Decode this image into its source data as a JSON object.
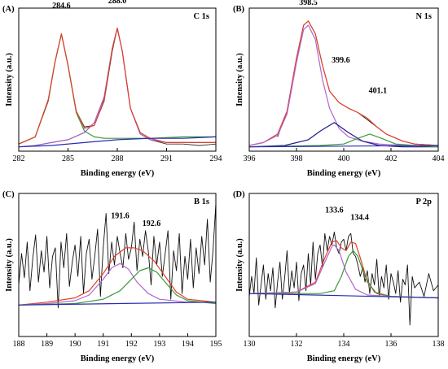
{
  "chart_data": [
    {
      "type": "line",
      "panel": "(A)",
      "title": "C 1s",
      "xlabel": "Binding energy (eV)",
      "ylabel": "Intensity (a.u.)",
      "xlim": [
        282,
        294
      ],
      "xticks": [
        282,
        285,
        288,
        291,
        294
      ],
      "ylim": [
        0,
        1
      ],
      "grid": false,
      "annotations": [
        {
          "text": "284.6",
          "x": 284.6,
          "y": 0.965
        },
        {
          "text": "288.0",
          "x": 288.0,
          "y": 1.0
        }
      ],
      "series": [
        {
          "color": "#333333",
          "x": [
            282,
            283,
            283.8,
            284.2,
            284.6,
            285.0,
            285.5,
            286.0,
            286.6,
            287.2,
            287.7,
            288.0,
            288.3,
            288.8,
            289.4,
            290,
            291,
            292,
            293,
            294
          ],
          "y": [
            0.05,
            0.1,
            0.35,
            0.62,
            0.82,
            0.6,
            0.28,
            0.17,
            0.18,
            0.35,
            0.7,
            0.86,
            0.7,
            0.3,
            0.12,
            0.08,
            0.05,
            0.05,
            0.04,
            0.05
          ]
        },
        {
          "color": "#3a9a3a",
          "x": [
            282,
            283,
            283.8,
            284.2,
            284.6,
            285.0,
            285.5,
            286.0,
            286.6,
            287.2,
            288,
            289,
            290,
            292,
            294
          ],
          "y": [
            0.05,
            0.1,
            0.36,
            0.62,
            0.82,
            0.6,
            0.27,
            0.14,
            0.1,
            0.09,
            0.09,
            0.09,
            0.09,
            0.1,
            0.1
          ]
        },
        {
          "color": "#9a5bc4",
          "x": [
            282,
            283,
            284,
            285,
            286,
            286.6,
            287.2,
            287.7,
            288.0,
            288.3,
            288.8,
            289.4,
            290,
            291,
            292,
            294
          ],
          "y": [
            0.03,
            0.04,
            0.06,
            0.08,
            0.13,
            0.2,
            0.38,
            0.72,
            0.86,
            0.7,
            0.3,
            0.12,
            0.08,
            0.06,
            0.06,
            0.06
          ]
        },
        {
          "color": "#e0402a",
          "x": [
            282,
            283,
            283.8,
            284.2,
            284.6,
            285.0,
            285.5,
            286.0,
            286.6,
            287.2,
            287.7,
            288.0,
            288.3,
            288.8,
            289.4,
            290,
            291,
            292,
            294
          ],
          "y": [
            0.05,
            0.1,
            0.36,
            0.62,
            0.82,
            0.6,
            0.28,
            0.16,
            0.18,
            0.36,
            0.72,
            0.86,
            0.7,
            0.3,
            0.13,
            0.09,
            0.06,
            0.06,
            0.06
          ]
        },
        {
          "color": "#2b2bb0",
          "x": [
            282,
            284,
            286,
            288,
            290,
            292,
            294
          ],
          "y": [
            0.03,
            0.04,
            0.06,
            0.08,
            0.09,
            0.09,
            0.1
          ]
        }
      ]
    },
    {
      "type": "line",
      "panel": "(B)",
      "title": "N 1s",
      "xlabel": "Binding energy (eV)",
      "ylabel": "Intensity (a.u.)",
      "xlim": [
        396,
        404
      ],
      "xticks": [
        396,
        398,
        400,
        402,
        404
      ],
      "ylim": [
        0,
        1
      ],
      "grid": false,
      "annotations": [
        {
          "text": "398.5",
          "x": 398.5,
          "y": 0.99
        },
        {
          "text": "399.6",
          "x": 399.6,
          "y": 0.55
        },
        {
          "text": "401.1",
          "x": 401.1,
          "y": 0.36
        }
      ],
      "series": [
        {
          "color": "#111111",
          "x": [
            397.2,
            397.6,
            398.0,
            398.3,
            398.5,
            398.8,
            399.1,
            399.4,
            399.8,
            400.2,
            400.6,
            401.0,
            401.4,
            401.8,
            402.5,
            403,
            404
          ],
          "y": [
            0.1,
            0.28,
            0.65,
            0.88,
            0.91,
            0.82,
            0.6,
            0.42,
            0.34,
            0.3,
            0.27,
            0.22,
            0.17,
            0.12,
            0.07,
            0.05,
            0.04
          ]
        },
        {
          "color": "#e0402a",
          "x": [
            396,
            396.6,
            397.2,
            397.6,
            398.0,
            398.3,
            398.5,
            398.8,
            399.1,
            399.4,
            399.8,
            400.2,
            400.6,
            401.0,
            401.4,
            401.8,
            402.5,
            403,
            404
          ],
          "y": [
            0.04,
            0.06,
            0.12,
            0.28,
            0.65,
            0.88,
            0.91,
            0.82,
            0.6,
            0.42,
            0.34,
            0.3,
            0.27,
            0.23,
            0.17,
            0.12,
            0.07,
            0.05,
            0.04
          ]
        },
        {
          "color": "#b066d0",
          "x": [
            396,
            396.6,
            397.2,
            397.6,
            398.0,
            398.3,
            398.5,
            398.8,
            399.1,
            399.4,
            399.8,
            400.2,
            400.8,
            401.5,
            402.5,
            404
          ],
          "y": [
            0.04,
            0.06,
            0.11,
            0.26,
            0.62,
            0.85,
            0.88,
            0.78,
            0.5,
            0.3,
            0.16,
            0.1,
            0.07,
            0.05,
            0.04,
            0.04
          ]
        },
        {
          "color": "#1a1a8a",
          "x": [
            396,
            397.5,
            398.5,
            399.0,
            399.6,
            400.2,
            400.8,
            401.5,
            402.5,
            404
          ],
          "y": [
            0.03,
            0.04,
            0.08,
            0.14,
            0.2,
            0.13,
            0.07,
            0.04,
            0.03,
            0.03
          ]
        },
        {
          "color": "#3a9a3a",
          "x": [
            396,
            399,
            400,
            400.6,
            401.1,
            401.6,
            402.2,
            403,
            404
          ],
          "y": [
            0.03,
            0.04,
            0.05,
            0.09,
            0.12,
            0.09,
            0.05,
            0.04,
            0.03
          ]
        },
        {
          "color": "#2b2bb0",
          "x": [
            396,
            400,
            404
          ],
          "y": [
            0.03,
            0.035,
            0.04
          ]
        }
      ]
    },
    {
      "type": "line",
      "panel": "(C)",
      "title": "B 1s",
      "xlabel": "Binding energy (eV)",
      "ylabel": "Intensity (a.u.)",
      "xlim": [
        188,
        195
      ],
      "xticks": [
        188,
        189,
        190,
        191,
        192,
        193,
        194,
        195
      ],
      "ylim": [
        0,
        1
      ],
      "grid": false,
      "annotations": [
        {
          "text": "191.6",
          "x": 191.6,
          "y": 0.78
        },
        {
          "text": "192.6",
          "x": 192.6,
          "y": 0.74
        }
      ],
      "series": [
        {
          "color": "#111111",
          "x": [
            188,
            188.1,
            188.2,
            188.3,
            188.4,
            188.5,
            188.6,
            188.7,
            188.8,
            188.9,
            189.0,
            189.1,
            189.2,
            189.3,
            189.4,
            189.5,
            189.6,
            189.7,
            189.8,
            189.9,
            190.0,
            190.1,
            190.2,
            190.3,
            190.4,
            190.5,
            190.6,
            190.7,
            190.8,
            190.9,
            191.0,
            191.1,
            191.2,
            191.3,
            191.4,
            191.5,
            191.6,
            191.7,
            191.8,
            191.9,
            192.0,
            192.1,
            192.2,
            192.3,
            192.4,
            192.5,
            192.6,
            192.7,
            192.8,
            192.9,
            193.0,
            193.1,
            193.2,
            193.3,
            193.4,
            193.5,
            193.6,
            193.7,
            193.8,
            193.9,
            194.0,
            194.1,
            194.2,
            194.3,
            194.4,
            194.5,
            194.6,
            194.7,
            194.8,
            194.9,
            195.0
          ],
          "y": [
            0.36,
            0.58,
            0.41,
            0.66,
            0.32,
            0.55,
            0.71,
            0.38,
            0.6,
            0.45,
            0.7,
            0.34,
            0.56,
            0.62,
            0.2,
            0.66,
            0.48,
            0.72,
            0.35,
            0.52,
            0.64,
            0.42,
            0.7,
            0.3,
            0.58,
            0.68,
            0.4,
            0.56,
            0.75,
            0.28,
            0.62,
            0.86,
            0.44,
            0.66,
            0.5,
            0.7,
            0.58,
            0.48,
            0.72,
            0.54,
            0.62,
            0.8,
            0.46,
            0.68,
            0.56,
            0.74,
            0.6,
            0.36,
            0.7,
            0.5,
            0.66,
            0.42,
            0.58,
            0.74,
            0.26,
            0.6,
            0.46,
            0.72,
            0.3,
            0.56,
            0.4,
            0.68,
            0.34,
            0.62,
            0.44,
            0.7,
            0.5,
            0.82,
            0.38,
            0.6,
            0.93
          ]
        },
        {
          "color": "#e0402a",
          "x": [
            188,
            189,
            190,
            190.5,
            191,
            191.4,
            191.8,
            192.1,
            192.4,
            192.8,
            193.2,
            193.6,
            194,
            195
          ],
          "y": [
            0.22,
            0.24,
            0.27,
            0.32,
            0.44,
            0.56,
            0.62,
            0.62,
            0.6,
            0.53,
            0.42,
            0.31,
            0.26,
            0.24
          ]
        },
        {
          "color": "#b066d0",
          "x": [
            188,
            189,
            190,
            190.5,
            191,
            191.3,
            191.6,
            191.9,
            192.2,
            192.6,
            193,
            194,
            195
          ],
          "y": [
            0.22,
            0.23,
            0.25,
            0.29,
            0.4,
            0.48,
            0.51,
            0.47,
            0.38,
            0.3,
            0.26,
            0.24,
            0.24
          ]
        },
        {
          "color": "#3a9a3a",
          "x": [
            188,
            190,
            191,
            191.6,
            192.0,
            192.3,
            192.6,
            192.9,
            193.2,
            193.6,
            194,
            195
          ],
          "y": [
            0.22,
            0.23,
            0.26,
            0.32,
            0.4,
            0.46,
            0.48,
            0.45,
            0.38,
            0.29,
            0.25,
            0.23
          ]
        },
        {
          "color": "#2b2bb0",
          "x": [
            188,
            191.5,
            195
          ],
          "y": [
            0.22,
            0.23,
            0.24
          ]
        }
      ]
    },
    {
      "type": "line",
      "panel": "(D)",
      "title": "P 2p",
      "xlabel": "Binding energy (eV)",
      "ylabel": "Intensity (a.u.)",
      "xlim": [
        130,
        138
      ],
      "xticks": [
        130,
        132,
        134,
        136,
        138
      ],
      "ylim": [
        0,
        1
      ],
      "grid": false,
      "annotations": [
        {
          "text": "133.6",
          "x": 133.6,
          "y": 0.82
        },
        {
          "text": "134.4",
          "x": 134.4,
          "y": 0.78
        }
      ],
      "series": [
        {
          "color": "#111111",
          "x": [
            130,
            130.1,
            130.2,
            130.3,
            130.4,
            130.5,
            130.6,
            130.7,
            130.8,
            130.9,
            131.0,
            131.1,
            131.2,
            131.3,
            131.4,
            131.5,
            131.6,
            131.7,
            131.8,
            131.9,
            132.0,
            132.1,
            132.2,
            132.3,
            132.4,
            132.5,
            132.6,
            132.7,
            132.8,
            132.9,
            133.0,
            133.1,
            133.2,
            133.3,
            133.4,
            133.5,
            133.6,
            133.7,
            133.8,
            133.9,
            134.0,
            134.1,
            134.2,
            134.3,
            134.4,
            134.5,
            134.6,
            134.7,
            134.8,
            134.9,
            135.0,
            135.1,
            135.2,
            135.3,
            135.4,
            135.5,
            135.6,
            135.7,
            135.8,
            135.9,
            136.0,
            136.1,
            136.2,
            136.3,
            136.4,
            136.5,
            136.6,
            136.7,
            136.8,
            136.9,
            137.0,
            137.2,
            137.4,
            137.6,
            137.8,
            138.0
          ],
          "y": [
            0.28,
            0.42,
            0.3,
            0.55,
            0.22,
            0.36,
            0.5,
            0.26,
            0.44,
            0.32,
            0.48,
            0.2,
            0.38,
            0.52,
            0.26,
            0.41,
            0.6,
            0.3,
            0.46,
            0.34,
            0.52,
            0.25,
            0.44,
            0.5,
            0.32,
            0.58,
            0.36,
            0.66,
            0.4,
            0.58,
            0.64,
            0.48,
            0.72,
            0.6,
            0.7,
            0.64,
            0.73,
            0.62,
            0.58,
            0.66,
            0.68,
            0.6,
            0.7,
            0.72,
            0.58,
            0.56,
            0.5,
            0.42,
            0.48,
            0.38,
            0.46,
            0.3,
            0.44,
            0.36,
            0.54,
            0.28,
            0.42,
            0.34,
            0.5,
            0.26,
            0.44,
            0.38,
            0.3,
            0.46,
            0.24,
            0.4,
            0.36,
            0.5,
            0.08,
            0.42,
            0.34,
            0.38,
            0.28,
            0.44,
            0.32,
            0.36
          ]
        },
        {
          "color": "#e0402a",
          "x": [
            130,
            132,
            132.8,
            133.2,
            133.5,
            133.7,
            133.9,
            134.1,
            134.3,
            134.5,
            134.7,
            135.0,
            135.4,
            136,
            138
          ],
          "y": [
            0.3,
            0.31,
            0.38,
            0.55,
            0.66,
            0.67,
            0.62,
            0.6,
            0.66,
            0.65,
            0.55,
            0.38,
            0.3,
            0.28,
            0.27
          ]
        },
        {
          "color": "#b066d0",
          "x": [
            130,
            132,
            132.8,
            133.2,
            133.5,
            133.6,
            133.8,
            134.1,
            134.5,
            135,
            136,
            138
          ],
          "y": [
            0.3,
            0.31,
            0.37,
            0.52,
            0.63,
            0.64,
            0.6,
            0.45,
            0.33,
            0.29,
            0.28,
            0.27
          ]
        },
        {
          "color": "#3a9a3a",
          "x": [
            130,
            133,
            133.6,
            133.9,
            134.2,
            134.4,
            134.6,
            134.9,
            135.3,
            136,
            138
          ],
          "y": [
            0.3,
            0.3,
            0.32,
            0.42,
            0.56,
            0.6,
            0.56,
            0.42,
            0.31,
            0.28,
            0.27
          ]
        },
        {
          "color": "#2b2bb0",
          "x": [
            130,
            134,
            138
          ],
          "y": [
            0.3,
            0.285,
            0.27
          ]
        }
      ]
    }
  ]
}
